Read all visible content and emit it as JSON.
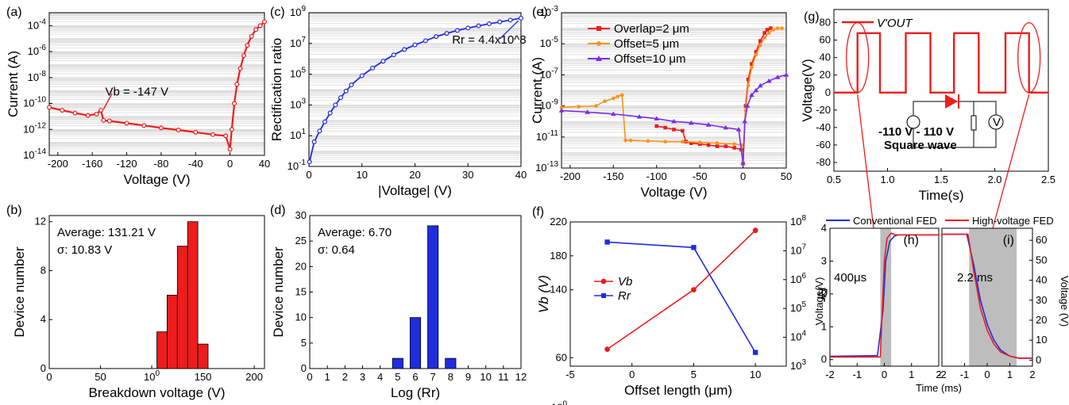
{
  "colors": {
    "red": "#ee1c1c",
    "blue": "#1f2de0",
    "orange": "#f7941d",
    "purple": "#7a2ee6",
    "gray": "#bdbdbd"
  },
  "panel_labels": [
    "(a)",
    "(b)",
    "(c)",
    "(d)",
    "(e)",
    "(f)",
    "(g)",
    "(h)",
    "(i)"
  ],
  "chart_data": [
    {
      "panel": "(a)",
      "type": "line",
      "xlabel": "Voltage (V)",
      "ylabel": "Current (A)",
      "xlim": [
        -210,
        40
      ],
      "ylim": [
        1e-14,
        0.001
      ],
      "yscale": "log",
      "xticks": [
        "-200",
        "-160",
        "-120",
        "-80",
        "-40",
        "0",
        "40"
      ],
      "yticks": [
        "10-14",
        "10-12",
        "10-10",
        "10-8",
        "10-6",
        "10-4"
      ],
      "annotation": "Vb = -147 V",
      "series": [
        {
          "x": [
            -210,
            -195,
            -180,
            -165,
            -155,
            -150,
            -147,
            -140,
            -120,
            -100,
            -80,
            -60,
            -40,
            -20,
            -5,
            0,
            2,
            5,
            8,
            12,
            16,
            20,
            25,
            30,
            35,
            40
          ],
          "y": [
            5e-11,
            3e-11,
            1.8e-11,
            1.2e-11,
            1.5e-11,
            3e-11,
            5e-12,
            4.5e-12,
            3e-12,
            2e-12,
            1.3e-12,
            9e-13,
            6e-13,
            4e-13,
            3.2e-13,
            3e-14,
            1e-12,
            1e-10,
            3e-09,
            5e-08,
            5e-07,
            3e-06,
            1.5e-05,
            5e-05,
            0.0001,
            0.0002
          ]
        }
      ]
    },
    {
      "panel": "(b)",
      "type": "bar",
      "xlabel": "Breakdown voltage (V)",
      "ylabel": "Device number",
      "xlim": [
        0,
        210
      ],
      "ylim": [
        0,
        12.5
      ],
      "xticks": [
        "0",
        "50",
        "100",
        "150",
        "200"
      ],
      "yticks": [
        "0",
        "4",
        "8",
        "12"
      ],
      "annotation_lines": [
        "Average: 131.21 V",
        "σ: 10.83 V"
      ],
      "bins": [
        {
          "x0": 105,
          "x1": 115,
          "value": 3
        },
        {
          "x0": 115,
          "x1": 125,
          "value": 6
        },
        {
          "x0": 125,
          "x1": 135,
          "value": 10
        },
        {
          "x0": 135,
          "x1": 145,
          "value": 12
        },
        {
          "x0": 145,
          "x1": 155,
          "value": 2
        }
      ]
    },
    {
      "panel": "(c)",
      "type": "line",
      "xlabel": "|Voltage| (V)",
      "ylabel": "Rectification ratio",
      "xlim": [
        0,
        40
      ],
      "ylim": [
        0.1,
        1000000000.0
      ],
      "yscale": "log",
      "xticks": [
        "0",
        "10",
        "20",
        "30",
        "40"
      ],
      "yticks": [
        "10-1",
        "101",
        "103",
        "105",
        "107",
        "109"
      ],
      "annotation": "Rr = 4.4x10^8",
      "series": [
        {
          "x": [
            0.1,
            1,
            2,
            3,
            4,
            5,
            6,
            7,
            8,
            10,
            12,
            14,
            16,
            18,
            20,
            22,
            24,
            26,
            28,
            30,
            32,
            34,
            36,
            38,
            40
          ],
          "y": [
            0.2,
            4,
            20,
            80,
            300,
            1000,
            3000,
            8000,
            20000,
            80000,
            250000,
            700000,
            1800000,
            4000000,
            8000000,
            15000000,
            28000000,
            45000000,
            70000000,
            100000000,
            140000000,
            190000000,
            250000000,
            330000000,
            440000000
          ]
        }
      ]
    },
    {
      "panel": "(d)",
      "type": "bar",
      "xlabel": "Log (Rr)",
      "ylabel": "Device number",
      "xlim": [
        0,
        12
      ],
      "ylim": [
        0,
        30
      ],
      "xticks": [
        "0",
        "1",
        "2",
        "3",
        "4",
        "5",
        "6",
        "7",
        "8",
        "9",
        "10",
        "11",
        "12"
      ],
      "yticks": [
        "0",
        "5",
        "10",
        "15",
        "20",
        "25",
        "30"
      ],
      "annotation_lines": [
        "Average: 6.70",
        "σ: 0.64"
      ],
      "bins": [
        {
          "x0": 4.7,
          "x1": 5.3,
          "value": 2
        },
        {
          "x0": 5.7,
          "x1": 6.3,
          "value": 10
        },
        {
          "x0": 6.7,
          "x1": 7.3,
          "value": 28
        },
        {
          "x0": 7.7,
          "x1": 8.3,
          "value": 2
        }
      ]
    },
    {
      "panel": "(e)",
      "type": "line",
      "xlabel": "Voltage (V)",
      "ylabel": "Current (A)",
      "xlim": [
        -210,
        50
      ],
      "ylim": [
        1e-13,
        0.001
      ],
      "yscale": "log",
      "xticks": [
        "-200",
        "-150",
        "-100",
        "-50",
        "0",
        "50"
      ],
      "yticks": [
        "10-13",
        "10-11",
        "10-9",
        "10-7",
        "10-5",
        "10-3"
      ],
      "legend_position": "top-left",
      "series": [
        {
          "name": "Overlap=2 μm",
          "color": "#ee1c1c",
          "x": [
            -100,
            -90,
            -80,
            -70,
            -66,
            -60,
            -50,
            -40,
            -30,
            -20,
            -10,
            -2,
            0,
            3,
            6,
            10,
            15,
            20,
            25,
            28,
            32
          ],
          "y": [
            5e-11,
            4e-11,
            3e-11,
            2.5e-11,
            5e-12,
            4e-12,
            3.5e-12,
            3e-12,
            2.5e-12,
            2.5e-12,
            2e-12,
            1.5e-12,
            2e-13,
            1e-09,
            5e-08,
            5e-07,
            3e-06,
            1.5e-05,
            5e-05,
            8e-05,
            0.0001
          ]
        },
        {
          "name": "Offset=5 μm",
          "color": "#f7941d",
          "x": [
            -210,
            -190,
            -170,
            -160,
            -150,
            -145,
            -140,
            -136,
            -130,
            -110,
            -90,
            -70,
            -50,
            -30,
            -10,
            -2,
            0,
            3,
            6,
            10,
            15,
            20,
            25,
            30,
            35,
            40,
            45
          ],
          "y": [
            8e-10,
            9e-10,
            1e-09,
            2e-09,
            3e-09,
            4e-09,
            5e-09,
            6e-12,
            6e-12,
            5.5e-12,
            5e-12,
            5e-12,
            4.5e-12,
            4e-12,
            3.5e-12,
            3e-12,
            2e-13,
            5e-10,
            2e-08,
            3e-07,
            2e-06,
            8e-06,
            2.5e-05,
            5e-05,
            8e-05,
            0.0001,
            0.0001
          ]
        },
        {
          "name": "Offset=10 μm",
          "color": "#7a2ee6",
          "x": [
            -210,
            -180,
            -150,
            -120,
            -100,
            -80,
            -60,
            -40,
            -20,
            -5,
            0,
            2,
            5,
            10,
            15,
            20,
            30,
            40,
            50
          ],
          "y": [
            5e-10,
            4e-10,
            3e-10,
            2e-10,
            1.5e-10,
            1e-10,
            8e-11,
            6e-11,
            4e-11,
            3e-11,
            2e-13,
            1e-10,
            1e-09,
            5e-09,
            1e-08,
            2e-08,
            4e-08,
            7e-08,
            1e-07
          ]
        }
      ]
    },
    {
      "panel": "(f)",
      "type": "line",
      "xlabel": "Offset length (μm)",
      "ylabel": "Vb (V)",
      "y2label": "Rr",
      "xlim": [
        -5,
        12.5
      ],
      "ylim": [
        50,
        220
      ],
      "y2lim": [
        1000,
        100000000.0
      ],
      "y2scale": "log",
      "xticks": [
        "-5",
        "0",
        "5",
        "10"
      ],
      "yticks": [
        "60",
        "100",
        "140",
        "180",
        "220"
      ],
      "y2ticks": [
        "103",
        "104",
        "105",
        "106",
        "107",
        "108"
      ],
      "legend_position": "center-left",
      "series": [
        {
          "name": "Vb",
          "axis": "left",
          "color": "#ee1c1c",
          "x": [
            -2,
            5,
            10
          ],
          "y": [
            70,
            140,
            210
          ]
        },
        {
          "name": "Rr",
          "axis": "right",
          "color": "#1f2de0",
          "x": [
            -2,
            5,
            10
          ],
          "y": [
            20000000,
            13000000,
            3000
          ]
        }
      ]
    },
    {
      "panel": "(g)",
      "type": "line",
      "xlabel": "Time(s)",
      "ylabel": "Voltage(V)",
      "xlim": [
        0.5,
        2.5
      ],
      "ylim": [
        -90,
        95
      ],
      "xticks": [
        "0.5",
        "1.0",
        "1.5",
        "2.0",
        "2.5"
      ],
      "yticks": [
        "-80",
        "-60",
        "-40",
        "-20",
        "0",
        "20",
        "40",
        "60",
        "80"
      ],
      "legend": "V'OUT",
      "circuit_labels": [
        "-110 V - 110 V",
        "Square wave",
        "V"
      ],
      "series": [
        {
          "name": "V'OUT",
          "x": [
            0.5,
            0.72,
            0.72,
            0.93,
            0.93,
            1.17,
            1.17,
            1.4,
            1.4,
            1.62,
            1.62,
            1.85,
            1.85,
            2.1,
            2.1,
            2.32,
            2.32,
            2.5
          ],
          "y": [
            0,
            0,
            68,
            68,
            0,
            0,
            68,
            68,
            0,
            0,
            68,
            68,
            0,
            0,
            68,
            68,
            0,
            0
          ]
        }
      ]
    },
    {
      "panel": "(h)",
      "type": "line",
      "xlabel": "Time (ms)",
      "ylabel": "Voltage(V)",
      "xlim": [
        -2,
        2
      ],
      "ylim": [
        -0.2,
        4
      ],
      "xticks": [
        "-2",
        "-1",
        "0",
        "1",
        "2"
      ],
      "yticks": [
        "0",
        "1",
        "2",
        "3",
        "4"
      ],
      "annotation": "400μs",
      "legend": [
        "Conventional FED",
        "High-voltage FED"
      ],
      "series": [
        {
          "name": "Conventional FED",
          "color": "#1f2de0",
          "x": [
            -2,
            -0.25,
            -0.05,
            0.05,
            0.2,
            0.35,
            0.5,
            2
          ],
          "y": [
            0.1,
            0.12,
            1.5,
            3.0,
            3.6,
            3.75,
            3.8,
            3.8
          ]
        },
        {
          "name": "High-voltage FED",
          "color": "#ee1c1c",
          "x": [
            -2,
            -0.15,
            0.0,
            0.1,
            0.25,
            0.4,
            2
          ],
          "y": [
            0.08,
            0.08,
            3.0,
            3.7,
            3.85,
            3.8,
            3.8
          ]
        }
      ]
    },
    {
      "panel": "(i)",
      "type": "line",
      "xlabel": "Time (ms)",
      "ylabel": "Voltage (V)",
      "xlim": [
        -2,
        2
      ],
      "ylim": [
        -3,
        66
      ],
      "xticks": [
        "-2",
        "-1",
        "0",
        "1",
        "2"
      ],
      "yticks": [
        "0",
        "10",
        "20",
        "30",
        "40",
        "50",
        "60"
      ],
      "annotation": "2.2 ms",
      "series": [
        {
          "name": "Conventional FED",
          "color": "#1f2de0",
          "x": [
            -2,
            -0.9,
            -0.6,
            -0.3,
            0,
            0.3,
            0.6,
            1,
            1.4,
            2
          ],
          "y": [
            63,
            63,
            48,
            30,
            18,
            10,
            5,
            2,
            1,
            1
          ]
        },
        {
          "name": "High-voltage FED",
          "color": "#ee1c1c",
          "x": [
            -2,
            -0.85,
            -0.6,
            -0.3,
            0,
            0.3,
            0.6,
            1,
            1.4,
            2
          ],
          "y": [
            63,
            63,
            45,
            26,
            15,
            8,
            4,
            2,
            1,
            1
          ]
        }
      ]
    }
  ]
}
